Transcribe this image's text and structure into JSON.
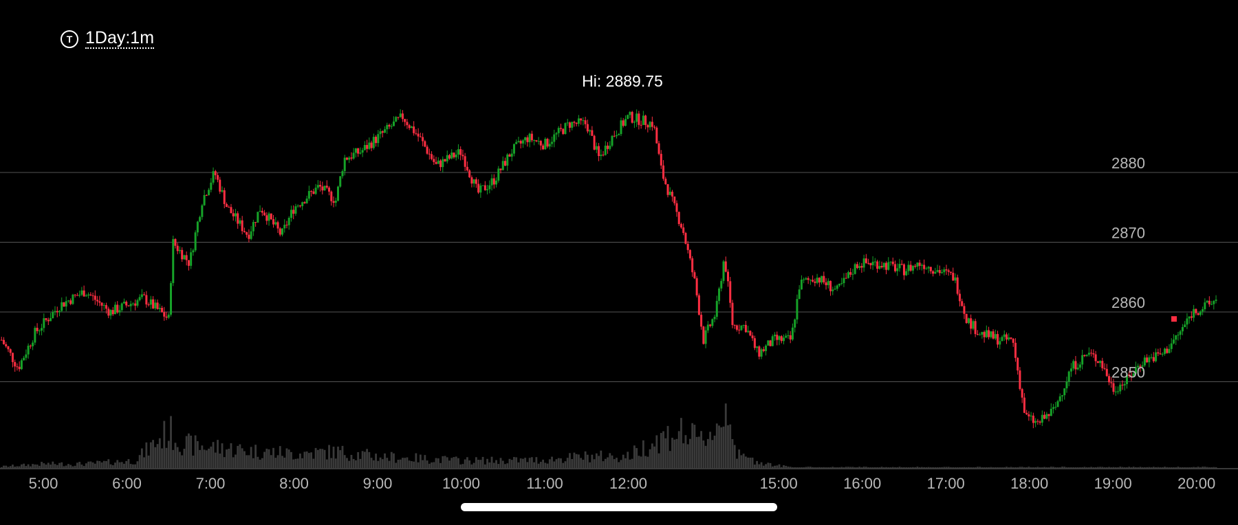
{
  "timeframe": {
    "icon": "clock-t-icon",
    "label": "1Day:1m"
  },
  "chart_data": {
    "type": "candlestick",
    "high_label": "Hi: 2889.75",
    "y_ticks": [
      2880,
      2870,
      2860,
      2850
    ],
    "ylim": [
      2839,
      2897
    ],
    "x_ticks": [
      "5:00",
      "6:00",
      "7:00",
      "8:00",
      "9:00",
      "10:00",
      "11:00",
      "12:00",
      "15:00",
      "16:00",
      "17:00",
      "18:00",
      "19:00",
      "20:00"
    ],
    "x_tick_hours": [
      5,
      6,
      7,
      8,
      9,
      10,
      11,
      12,
      13.8,
      14.8,
      15.8,
      16.8,
      17.8,
      18.8
    ],
    "price_path": [
      {
        "t": 4.5,
        "p": 2856
      },
      {
        "t": 4.7,
        "p": 2852
      },
      {
        "t": 4.9,
        "p": 2857
      },
      {
        "t": 5.2,
        "p": 2861
      },
      {
        "t": 5.5,
        "p": 2863
      },
      {
        "t": 5.8,
        "p": 2860
      },
      {
        "t": 6.0,
        "p": 2861
      },
      {
        "t": 6.2,
        "p": 2862
      },
      {
        "t": 6.5,
        "p": 2859
      },
      {
        "t": 6.55,
        "p": 2870
      },
      {
        "t": 6.75,
        "p": 2867
      },
      {
        "t": 6.9,
        "p": 2876
      },
      {
        "t": 7.05,
        "p": 2880
      },
      {
        "t": 7.2,
        "p": 2875
      },
      {
        "t": 7.45,
        "p": 2871
      },
      {
        "t": 7.6,
        "p": 2875
      },
      {
        "t": 7.85,
        "p": 2871
      },
      {
        "t": 8.0,
        "p": 2875
      },
      {
        "t": 8.3,
        "p": 2878
      },
      {
        "t": 8.5,
        "p": 2876
      },
      {
        "t": 8.6,
        "p": 2882
      },
      {
        "t": 8.8,
        "p": 2883
      },
      {
        "t": 9.0,
        "p": 2885
      },
      {
        "t": 9.3,
        "p": 2888
      },
      {
        "t": 9.5,
        "p": 2885
      },
      {
        "t": 9.7,
        "p": 2881
      },
      {
        "t": 10.0,
        "p": 2883
      },
      {
        "t": 10.2,
        "p": 2877
      },
      {
        "t": 10.4,
        "p": 2879
      },
      {
        "t": 10.6,
        "p": 2883
      },
      {
        "t": 10.8,
        "p": 2885
      },
      {
        "t": 11.0,
        "p": 2884
      },
      {
        "t": 11.3,
        "p": 2887
      },
      {
        "t": 11.5,
        "p": 2887
      },
      {
        "t": 11.65,
        "p": 2882
      },
      {
        "t": 11.8,
        "p": 2885
      },
      {
        "t": 12.0,
        "p": 2888
      },
      {
        "t": 12.3,
        "p": 2887
      },
      {
        "t": 12.4,
        "p": 2880
      },
      {
        "t": 12.55,
        "p": 2875
      },
      {
        "t": 12.65,
        "p": 2872
      },
      {
        "t": 12.8,
        "p": 2864
      },
      {
        "t": 12.9,
        "p": 2856
      },
      {
        "t": 13.05,
        "p": 2860
      },
      {
        "t": 13.15,
        "p": 2868
      },
      {
        "t": 13.25,
        "p": 2858
      },
      {
        "t": 13.4,
        "p": 2858
      },
      {
        "t": 13.55,
        "p": 2854
      },
      {
        "t": 13.75,
        "p": 2856
      },
      {
        "t": 13.95,
        "p": 2856
      },
      {
        "t": 14.05,
        "p": 2864
      },
      {
        "t": 14.25,
        "p": 2865
      },
      {
        "t": 14.5,
        "p": 2863
      },
      {
        "t": 14.75,
        "p": 2867
      },
      {
        "t": 15.0,
        "p": 2867
      },
      {
        "t": 15.3,
        "p": 2866
      },
      {
        "t": 15.5,
        "p": 2867
      },
      {
        "t": 15.7,
        "p": 2866
      },
      {
        "t": 15.9,
        "p": 2865
      },
      {
        "t": 16.05,
        "p": 2859
      },
      {
        "t": 16.2,
        "p": 2857
      },
      {
        "t": 16.45,
        "p": 2856
      },
      {
        "t": 16.6,
        "p": 2856
      },
      {
        "t": 16.75,
        "p": 2845
      },
      {
        "t": 16.9,
        "p": 2844
      },
      {
        "t": 17.1,
        "p": 2846
      },
      {
        "t": 17.3,
        "p": 2852
      },
      {
        "t": 17.5,
        "p": 2854
      },
      {
        "t": 17.65,
        "p": 2853
      },
      {
        "t": 17.8,
        "p": 2849
      },
      {
        "t": 17.95,
        "p": 2850
      },
      {
        "t": 18.15,
        "p": 2853
      },
      {
        "t": 18.4,
        "p": 2854
      },
      {
        "t": 18.6,
        "p": 2857
      },
      {
        "t": 18.75,
        "p": 2860
      },
      {
        "t": 18.95,
        "p": 2861
      },
      {
        "t": 19.05,
        "p": 2862
      }
    ],
    "volume_profile": [
      {
        "t": 4.5,
        "v": 0.03
      },
      {
        "t": 5.0,
        "v": 0.07
      },
      {
        "t": 5.5,
        "v": 0.07
      },
      {
        "t": 6.1,
        "v": 0.12
      },
      {
        "t": 6.5,
        "v": 0.55
      },
      {
        "t": 6.7,
        "v": 0.35
      },
      {
        "t": 7.0,
        "v": 0.32
      },
      {
        "t": 7.5,
        "v": 0.26
      },
      {
        "t": 8.0,
        "v": 0.22
      },
      {
        "t": 8.5,
        "v": 0.25
      },
      {
        "t": 9.0,
        "v": 0.18
      },
      {
        "t": 9.5,
        "v": 0.15
      },
      {
        "t": 10.0,
        "v": 0.12
      },
      {
        "t": 10.5,
        "v": 0.12
      },
      {
        "t": 11.0,
        "v": 0.13
      },
      {
        "t": 11.5,
        "v": 0.18
      },
      {
        "t": 12.0,
        "v": 0.18
      },
      {
        "t": 12.3,
        "v": 0.4
      },
      {
        "t": 12.6,
        "v": 0.55
      },
      {
        "t": 12.85,
        "v": 0.4
      },
      {
        "t": 13.0,
        "v": 0.55
      },
      {
        "t": 13.1,
        "v": 0.65
      },
      {
        "t": 13.2,
        "v": 1.0
      },
      {
        "t": 13.3,
        "v": 0.2
      },
      {
        "t": 13.5,
        "v": 0.12
      },
      {
        "t": 13.75,
        "v": 0.05
      },
      {
        "t": 14.0,
        "v": 0.02
      },
      {
        "t": 19.1,
        "v": 0.02
      }
    ],
    "up_color": "#16a228",
    "down_color": "#ff2e42",
    "volume_color": "#3a3a3a",
    "grid_color": "#555555",
    "axis_text_color": "#b8b8b8",
    "marker_color": "#ff2e42"
  }
}
